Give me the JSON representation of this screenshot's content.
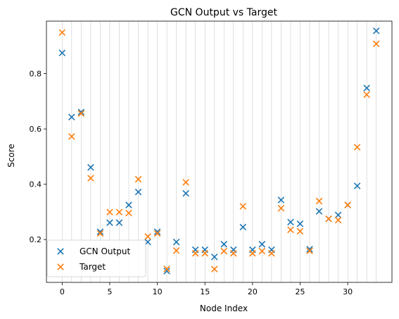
{
  "chart_data": {
    "type": "scatter",
    "title": "GCN Output vs Target",
    "xlabel": "Node Index",
    "ylabel": "Score",
    "xlim": [
      -1.65,
      34.65
    ],
    "ylim": [
      0.045,
      0.99
    ],
    "xticks": [
      0,
      5,
      10,
      15,
      20,
      25,
      30
    ],
    "yticks": [
      0.2,
      0.4,
      0.6,
      0.8
    ],
    "grid": "vertical lines at every node index",
    "legend_position": "lower-left",
    "marker": "x",
    "series": [
      {
        "name": "GCN Output",
        "color": "#1f77b4",
        "x": [
          0,
          1,
          2,
          3,
          4,
          5,
          6,
          7,
          8,
          9,
          10,
          11,
          12,
          13,
          14,
          15,
          16,
          17,
          18,
          19,
          20,
          21,
          22,
          23,
          24,
          25,
          26,
          27,
          28,
          29,
          30,
          31,
          32,
          33
        ],
        "y": [
          0.875,
          0.643,
          0.661,
          0.461,
          0.228,
          0.261,
          0.261,
          0.325,
          0.372,
          0.191,
          0.228,
          0.086,
          0.191,
          0.367,
          0.163,
          0.163,
          0.137,
          0.183,
          0.163,
          0.245,
          0.163,
          0.183,
          0.163,
          0.343,
          0.263,
          0.257,
          0.165,
          0.302,
          0.275,
          0.289,
          0.325,
          0.394,
          0.748,
          0.955
        ]
      },
      {
        "name": "Target",
        "color": "#ff7f0e",
        "x": [
          0,
          1,
          2,
          3,
          4,
          5,
          6,
          7,
          8,
          9,
          10,
          11,
          12,
          13,
          14,
          15,
          16,
          17,
          18,
          19,
          20,
          21,
          22,
          23,
          24,
          25,
          26,
          27,
          28,
          29,
          30,
          31,
          32,
          33
        ],
        "y": [
          0.949,
          0.573,
          0.656,
          0.422,
          0.222,
          0.299,
          0.299,
          0.296,
          0.418,
          0.211,
          0.222,
          0.094,
          0.16,
          0.407,
          0.15,
          0.15,
          0.093,
          0.158,
          0.15,
          0.32,
          0.15,
          0.158,
          0.15,
          0.313,
          0.235,
          0.23,
          0.159,
          0.339,
          0.275,
          0.27,
          0.325,
          0.534,
          0.724,
          0.908
        ]
      }
    ]
  }
}
